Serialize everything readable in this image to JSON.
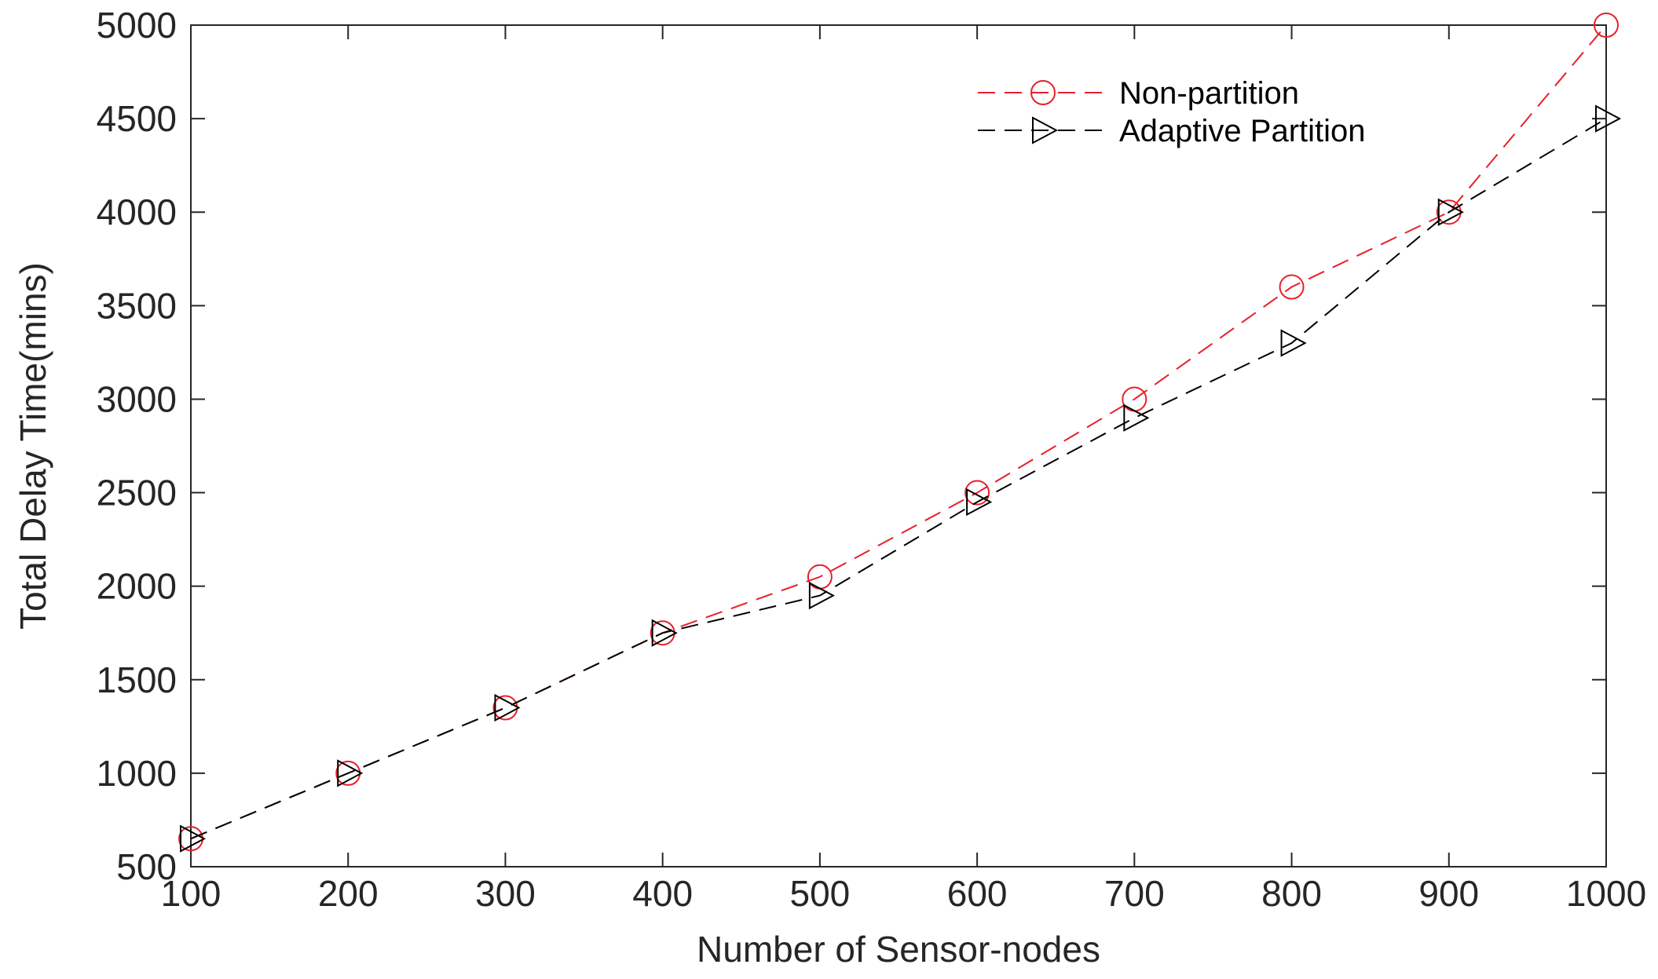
{
  "chart_data": {
    "type": "line",
    "title": "",
    "xlabel": "Number of Sensor-nodes",
    "ylabel": "Total Delay Time(mins)",
    "xlim": [
      100,
      1000
    ],
    "ylim": [
      500,
      5000
    ],
    "xticks": [
      100,
      200,
      300,
      400,
      500,
      600,
      700,
      800,
      900,
      1000
    ],
    "yticks": [
      500,
      1000,
      1500,
      2000,
      2500,
      3000,
      3500,
      4000,
      4500,
      5000
    ],
    "grid": false,
    "legend_position": "top-right",
    "x": [
      100,
      200,
      300,
      400,
      500,
      600,
      700,
      800,
      900,
      1000
    ],
    "series": [
      {
        "name": "Non-partition",
        "color": "#e8202a",
        "marker": "circle",
        "line_style": "dashed",
        "values": [
          650,
          1000,
          1350,
          1750,
          2050,
          2500,
          3000,
          3600,
          4000,
          5000
        ]
      },
      {
        "name": "Adaptive Partition",
        "color": "#000000",
        "marker": "triangle-right",
        "line_style": "dashed",
        "values": [
          650,
          1000,
          1350,
          1750,
          1950,
          2450,
          2900,
          3300,
          4000,
          4500
        ]
      }
    ]
  }
}
